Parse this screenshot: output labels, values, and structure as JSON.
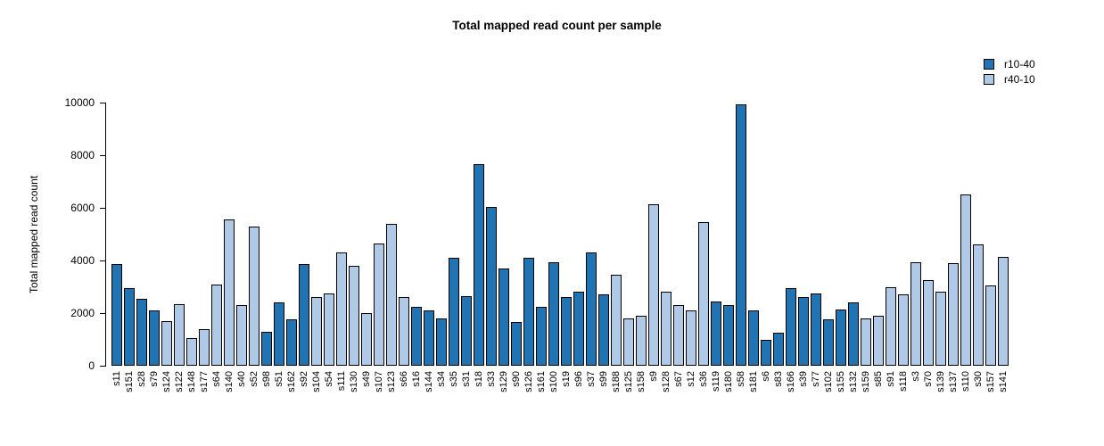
{
  "chart_data": {
    "type": "bar",
    "title": "Total mapped read count per sample",
    "xlabel": "",
    "ylabel": "Total mapped read count",
    "ylim": [
      0,
      10000
    ],
    "yticks": [
      0,
      2000,
      4000,
      6000,
      8000,
      10000
    ],
    "grid": false,
    "legend_position": "top-right",
    "legend": [
      {
        "label": "r10-40",
        "color": "#2173b2"
      },
      {
        "label": "r40-10",
        "color": "#b0c9e7"
      }
    ],
    "samples": [
      {
        "id": "s11",
        "value": 3850,
        "group": "r10-40"
      },
      {
        "id": "s151",
        "value": 2950,
        "group": "r10-40"
      },
      {
        "id": "s28",
        "value": 2550,
        "group": "r10-40"
      },
      {
        "id": "s79",
        "value": 2100,
        "group": "r10-40"
      },
      {
        "id": "s124",
        "value": 1700,
        "group": "r40-10"
      },
      {
        "id": "s122",
        "value": 2350,
        "group": "r40-10"
      },
      {
        "id": "s148",
        "value": 1050,
        "group": "r40-10"
      },
      {
        "id": "s177",
        "value": 1400,
        "group": "r40-10"
      },
      {
        "id": "s64",
        "value": 3100,
        "group": "r40-10"
      },
      {
        "id": "s140",
        "value": 5550,
        "group": "r40-10"
      },
      {
        "id": "s40",
        "value": 2300,
        "group": "r40-10"
      },
      {
        "id": "s52",
        "value": 5300,
        "group": "r40-10"
      },
      {
        "id": "s98",
        "value": 1300,
        "group": "r10-40"
      },
      {
        "id": "s51",
        "value": 2400,
        "group": "r10-40"
      },
      {
        "id": "s162",
        "value": 1750,
        "group": "r10-40"
      },
      {
        "id": "s92",
        "value": 3850,
        "group": "r10-40"
      },
      {
        "id": "s104",
        "value": 2600,
        "group": "r40-10"
      },
      {
        "id": "s54",
        "value": 2750,
        "group": "r40-10"
      },
      {
        "id": "s111",
        "value": 4300,
        "group": "r40-10"
      },
      {
        "id": "s130",
        "value": 3800,
        "group": "r40-10"
      },
      {
        "id": "s49",
        "value": 2000,
        "group": "r40-10"
      },
      {
        "id": "s107",
        "value": 4650,
        "group": "r40-10"
      },
      {
        "id": "s123",
        "value": 5400,
        "group": "r40-10"
      },
      {
        "id": "s66",
        "value": 2600,
        "group": "r40-10"
      },
      {
        "id": "s16",
        "value": 2250,
        "group": "r10-40"
      },
      {
        "id": "s144",
        "value": 2100,
        "group": "r10-40"
      },
      {
        "id": "s34",
        "value": 1800,
        "group": "r10-40"
      },
      {
        "id": "s35",
        "value": 4100,
        "group": "r10-40"
      },
      {
        "id": "s31",
        "value": 2650,
        "group": "r10-40"
      },
      {
        "id": "s18",
        "value": 7650,
        "group": "r10-40"
      },
      {
        "id": "s33",
        "value": 6050,
        "group": "r10-40"
      },
      {
        "id": "s129",
        "value": 3700,
        "group": "r10-40"
      },
      {
        "id": "s90",
        "value": 1650,
        "group": "r10-40"
      },
      {
        "id": "s126",
        "value": 4100,
        "group": "r10-40"
      },
      {
        "id": "s161",
        "value": 2250,
        "group": "r10-40"
      },
      {
        "id": "s100",
        "value": 3950,
        "group": "r10-40"
      },
      {
        "id": "s19",
        "value": 2600,
        "group": "r10-40"
      },
      {
        "id": "s96",
        "value": 2800,
        "group": "r10-40"
      },
      {
        "id": "s37",
        "value": 4300,
        "group": "r10-40"
      },
      {
        "id": "s99",
        "value": 2700,
        "group": "r10-40"
      },
      {
        "id": "s188",
        "value": 3450,
        "group": "r40-10"
      },
      {
        "id": "s125",
        "value": 1800,
        "group": "r40-10"
      },
      {
        "id": "s158",
        "value": 1900,
        "group": "r40-10"
      },
      {
        "id": "s9",
        "value": 6150,
        "group": "r40-10"
      },
      {
        "id": "s128",
        "value": 2800,
        "group": "r40-10"
      },
      {
        "id": "s67",
        "value": 2300,
        "group": "r40-10"
      },
      {
        "id": "s12",
        "value": 2100,
        "group": "r40-10"
      },
      {
        "id": "s36",
        "value": 5450,
        "group": "r40-10"
      },
      {
        "id": "s119",
        "value": 2450,
        "group": "r10-40"
      },
      {
        "id": "s180",
        "value": 2300,
        "group": "r10-40"
      },
      {
        "id": "s58",
        "value": 9950,
        "group": "r10-40"
      },
      {
        "id": "s181",
        "value": 2100,
        "group": "r10-40"
      },
      {
        "id": "s6",
        "value": 1000,
        "group": "r10-40"
      },
      {
        "id": "s83",
        "value": 1250,
        "group": "r10-40"
      },
      {
        "id": "s166",
        "value": 2950,
        "group": "r10-40"
      },
      {
        "id": "s39",
        "value": 2600,
        "group": "r10-40"
      },
      {
        "id": "s77",
        "value": 2750,
        "group": "r10-40"
      },
      {
        "id": "s102",
        "value": 1750,
        "group": "r10-40"
      },
      {
        "id": "s155",
        "value": 2150,
        "group": "r10-40"
      },
      {
        "id": "s132",
        "value": 2400,
        "group": "r10-40"
      },
      {
        "id": "s159",
        "value": 1800,
        "group": "r40-10"
      },
      {
        "id": "s85",
        "value": 1900,
        "group": "r40-10"
      },
      {
        "id": "s91",
        "value": 3000,
        "group": "r40-10"
      },
      {
        "id": "s118",
        "value": 2700,
        "group": "r40-10"
      },
      {
        "id": "s3",
        "value": 3950,
        "group": "r40-10"
      },
      {
        "id": "s70",
        "value": 3250,
        "group": "r40-10"
      },
      {
        "id": "s139",
        "value": 2800,
        "group": "r40-10"
      },
      {
        "id": "s137",
        "value": 3900,
        "group": "r40-10"
      },
      {
        "id": "s110",
        "value": 6500,
        "group": "r40-10"
      },
      {
        "id": "s30",
        "value": 4600,
        "group": "r40-10"
      },
      {
        "id": "s157",
        "value": 3050,
        "group": "r40-10"
      },
      {
        "id": "s141",
        "value": 4150,
        "group": "r40-10"
      }
    ]
  }
}
